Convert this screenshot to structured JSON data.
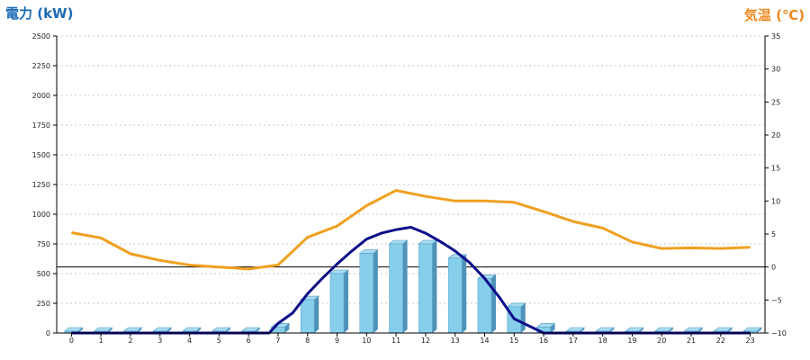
{
  "chart_data": {
    "type": "bar",
    "title": "",
    "left_axis": {
      "label": "電力 (kW)",
      "color": "#1a6bb5",
      "ylim": [
        0,
        2500
      ],
      "ticks": [
        "0",
        "250",
        "500",
        "750",
        "1000",
        "1250",
        "1500",
        "1750",
        "2000",
        "2250",
        "2500"
      ]
    },
    "right_axis": {
      "label": "気温 (℃)",
      "color": "#ee8822",
      "ylim": [
        -10,
        35
      ],
      "ticks": [
        "−10",
        "−5",
        "0",
        "5",
        "10",
        "15",
        "20",
        "25",
        "30",
        "35"
      ]
    },
    "categories": [
      "0",
      "1",
      "2",
      "3",
      "4",
      "5",
      "6",
      "7",
      "8",
      "9",
      "10",
      "11",
      "12",
      "13",
      "14",
      "15",
      "16",
      "17",
      "18",
      "19",
      "20",
      "21",
      "22",
      "23"
    ],
    "grid": true,
    "series": [
      {
        "kind": "bar",
        "axis": "left",
        "color": "#87ceeb",
        "values": [
          0,
          0,
          0,
          0,
          0,
          0,
          0,
          50,
          280,
          500,
          670,
          750,
          750,
          630,
          460,
          220,
          50,
          0,
          0,
          0,
          0,
          0,
          0,
          0
        ]
      },
      {
        "kind": "line",
        "axis": "left",
        "color": "#0d0d8a",
        "x": [
          0,
          1,
          2,
          3,
          4,
          5,
          6,
          6.7,
          7,
          7.5,
          8,
          8.5,
          9,
          9.5,
          10,
          10.5,
          11,
          11.5,
          12,
          12.5,
          13,
          13.5,
          14,
          14.5,
          15,
          15.5,
          16,
          17,
          18,
          19,
          20,
          21,
          22,
          23
        ],
        "values": [
          0,
          0,
          0,
          0,
          0,
          0,
          0,
          0,
          80,
          170,
          330,
          460,
          580,
          690,
          790,
          840,
          870,
          890,
          840,
          770,
          690,
          590,
          460,
          300,
          120,
          60,
          0,
          0,
          0,
          0,
          0,
          0,
          0,
          0
        ]
      },
      {
        "kind": "line",
        "axis": "right",
        "color": "#f0a020",
        "values": [
          5.2,
          4.4,
          2.0,
          1.0,
          0.3,
          0,
          -0.3,
          0.3,
          4.5,
          6.2,
          9.3,
          11.6,
          10.7,
          10.0,
          10.0,
          9.8,
          8.4,
          6.9,
          5.9,
          3.8,
          2.8,
          2.9,
          2.8,
          3.0
        ]
      }
    ],
    "reference_line": {
      "axis": "right",
      "value": 0,
      "color": "#000000"
    }
  }
}
